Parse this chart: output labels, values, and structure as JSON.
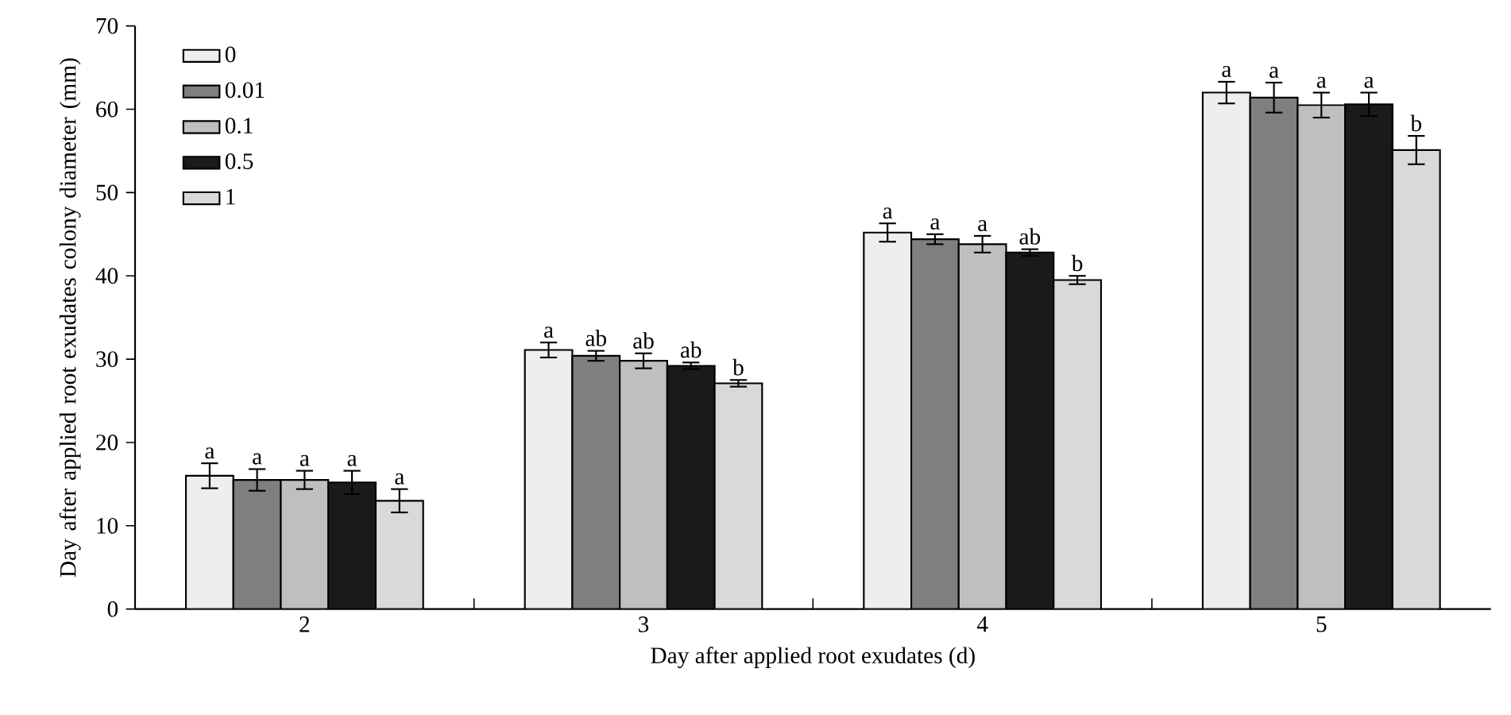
{
  "chart_data": {
    "type": "bar",
    "xlabel": "Day after applied root exudates (d)",
    "ylabel": "Day after applied root exudates colony diameter (mm)",
    "categories": [
      "2",
      "3",
      "4",
      "5"
    ],
    "series": [
      {
        "name": "0",
        "color": "#eeeeee",
        "values": [
          16,
          31.1,
          45.2,
          62
        ],
        "errors": [
          1.5,
          0.9,
          1.1,
          1.3
        ],
        "value_labels": [
          "a",
          "a",
          "a",
          "a"
        ]
      },
      {
        "name": "0.01",
        "color": "#7f7f7f",
        "values": [
          15.5,
          30.4,
          44.4,
          61.4
        ],
        "errors": [
          1.3,
          0.6,
          0.6,
          1.8
        ],
        "value_labels": [
          "a",
          "ab",
          "a",
          "a"
        ]
      },
      {
        "name": "0.1",
        "color": "#bfbfbf",
        "values": [
          15.5,
          29.8,
          43.8,
          60.5
        ],
        "errors": [
          1.1,
          0.9,
          1.0,
          1.5
        ],
        "value_labels": [
          "a",
          "ab",
          "a",
          "a"
        ]
      },
      {
        "name": "0.5",
        "color": "#1a1a1a",
        "values": [
          15.2,
          29.2,
          42.8,
          60.6
        ],
        "errors": [
          1.4,
          0.4,
          0.4,
          1.4
        ],
        "value_labels": [
          "a",
          "ab",
          "ab",
          "a"
        ]
      },
      {
        "name": "1",
        "color": "#d9d9d9",
        "values": [
          13,
          27.1,
          39.5,
          55.1
        ],
        "errors": [
          1.4,
          0.4,
          0.5,
          1.7
        ],
        "value_labels": [
          "a",
          "b",
          "b",
          "b"
        ]
      }
    ],
    "ylim": [
      0,
      70
    ],
    "yticks": [
      0,
      10,
      20,
      30,
      40,
      50,
      60,
      70
    ],
    "grid": false,
    "legend": "top left"
  }
}
